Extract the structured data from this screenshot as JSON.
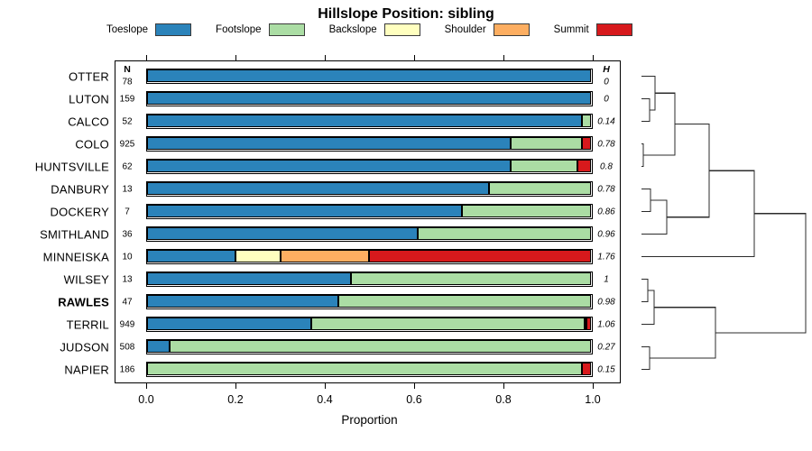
{
  "title": "Hillslope Position: sibling",
  "legend": {
    "items": [
      {
        "label": "Toeslope",
        "color": "#2b83ba"
      },
      {
        "label": "Footslope",
        "color": "#abdda4"
      },
      {
        "label": "Backslope",
        "color": "#ffffbf"
      },
      {
        "label": "Shoulder",
        "color": "#fdae61"
      },
      {
        "label": "Summit",
        "color": "#d7191c"
      }
    ]
  },
  "columns": {
    "n_header": "N",
    "h_header": "H"
  },
  "axis": {
    "label": "Proportion",
    "tick_labels": [
      "0.0",
      "0.2",
      "0.4",
      "0.6",
      "0.8",
      "1.0"
    ],
    "tick_values": [
      0,
      0.2,
      0.4,
      0.6,
      0.8,
      1.0
    ]
  },
  "chart_data": {
    "type": "bar",
    "orientation": "horizontal-stacked",
    "xlabel": "Proportion",
    "xlim": [
      0,
      1
    ],
    "stack_categories": [
      "Toeslope",
      "Footslope",
      "Backslope",
      "Shoulder",
      "Summit"
    ],
    "colors": {
      "Toeslope": "#2b83ba",
      "Footslope": "#abdda4",
      "Backslope": "#ffffbf",
      "Shoulder": "#fdae61",
      "Summit": "#d7191c"
    },
    "rows": [
      {
        "name": "OTTER",
        "n": "78",
        "h": "0",
        "bold": false,
        "segments": [
          {
            "pos": "Toeslope",
            "v": 1.0
          }
        ]
      },
      {
        "name": "LUTON",
        "n": "159",
        "h": "0",
        "bold": false,
        "segments": [
          {
            "pos": "Toeslope",
            "v": 1.0
          }
        ]
      },
      {
        "name": "CALCO",
        "n": "52",
        "h": "0.14",
        "bold": false,
        "segments": [
          {
            "pos": "Toeslope",
            "v": 0.98
          },
          {
            "pos": "Footslope",
            "v": 0.02
          }
        ]
      },
      {
        "name": "COLO",
        "n": "925",
        "h": "0.78",
        "bold": false,
        "segments": [
          {
            "pos": "Toeslope",
            "v": 0.82
          },
          {
            "pos": "Footslope",
            "v": 0.16
          },
          {
            "pos": "Summit",
            "v": 0.02
          }
        ]
      },
      {
        "name": "HUNTSVILLE",
        "n": "62",
        "h": "0.8",
        "bold": false,
        "segments": [
          {
            "pos": "Toeslope",
            "v": 0.82
          },
          {
            "pos": "Footslope",
            "v": 0.15
          },
          {
            "pos": "Summit",
            "v": 0.03
          }
        ]
      },
      {
        "name": "DANBURY",
        "n": "13",
        "h": "0.78",
        "bold": false,
        "segments": [
          {
            "pos": "Toeslope",
            "v": 0.77
          },
          {
            "pos": "Footslope",
            "v": 0.23
          }
        ]
      },
      {
        "name": "DOCKERY",
        "n": "7",
        "h": "0.86",
        "bold": false,
        "segments": [
          {
            "pos": "Toeslope",
            "v": 0.71
          },
          {
            "pos": "Footslope",
            "v": 0.29
          }
        ]
      },
      {
        "name": "SMITHLAND",
        "n": "36",
        "h": "0.96",
        "bold": false,
        "segments": [
          {
            "pos": "Toeslope",
            "v": 0.61
          },
          {
            "pos": "Footslope",
            "v": 0.39
          }
        ]
      },
      {
        "name": "MINNEISKA",
        "n": "10",
        "h": "1.76",
        "bold": false,
        "segments": [
          {
            "pos": "Toeslope",
            "v": 0.2
          },
          {
            "pos": "Backslope",
            "v": 0.1
          },
          {
            "pos": "Shoulder",
            "v": 0.2
          },
          {
            "pos": "Summit",
            "v": 0.5
          }
        ]
      },
      {
        "name": "WILSEY",
        "n": "13",
        "h": "1",
        "bold": false,
        "segments": [
          {
            "pos": "Toeslope",
            "v": 0.46
          },
          {
            "pos": "Footslope",
            "v": 0.54
          }
        ]
      },
      {
        "name": "RAWLES",
        "n": "47",
        "h": "0.98",
        "bold": true,
        "segments": [
          {
            "pos": "Toeslope",
            "v": 0.43
          },
          {
            "pos": "Footslope",
            "v": 0.57
          }
        ]
      },
      {
        "name": "TERRIL",
        "n": "949",
        "h": "1.06",
        "bold": false,
        "segments": [
          {
            "pos": "Toeslope",
            "v": 0.37
          },
          {
            "pos": "Footslope",
            "v": 0.615
          },
          {
            "pos": "Backslope",
            "v": 0.005
          },
          {
            "pos": "Summit",
            "v": 0.01
          }
        ]
      },
      {
        "name": "JUDSON",
        "n": "508",
        "h": "0.27",
        "bold": false,
        "segments": [
          {
            "pos": "Toeslope",
            "v": 0.05
          },
          {
            "pos": "Footslope",
            "v": 0.95
          }
        ]
      },
      {
        "name": "NAPIER",
        "n": "186",
        "h": "0.15",
        "bold": false,
        "segments": [
          {
            "pos": "Footslope",
            "v": 0.98
          },
          {
            "pos": "Summit",
            "v": 0.02
          }
        ]
      }
    ],
    "dendrogram": {
      "leaf_order": [
        "OTTER",
        "LUTON",
        "CALCO",
        "COLO",
        "HUNTSVILLE",
        "DANBURY",
        "DOCKERY",
        "SMITHLAND",
        "MINNEISKA",
        "WILSEY",
        "RAWLES",
        "TERRIL",
        "JUDSON",
        "NAPIER"
      ],
      "merges": [
        {
          "id": "A",
          "a": "COLO",
          "b": "HUNTSVILLE",
          "h": 0.011
        },
        {
          "id": "B",
          "a": "WILSEY",
          "b": "RAWLES",
          "h": 0.038
        },
        {
          "id": "C",
          "a": "LUTON",
          "b": "CALCO",
          "h": 0.049
        },
        {
          "id": "D",
          "a": "JUDSON",
          "b": "NAPIER",
          "h": 0.049
        },
        {
          "id": "E",
          "a": "DANBURY",
          "b": "DOCKERY",
          "h": 0.055
        },
        {
          "id": "F",
          "a": "B",
          "b": "TERRIL",
          "h": 0.077
        },
        {
          "id": "G",
          "a": "OTTER",
          "b": "C",
          "h": 0.082
        },
        {
          "id": "H2",
          "a": "E",
          "b": "SMITHLAND",
          "h": 0.154
        },
        {
          "id": "I",
          "a": "G",
          "b": "A",
          "h": 0.203
        },
        {
          "id": "J",
          "a": "I",
          "b": "H2",
          "h": 0.412
        },
        {
          "id": "K",
          "a": "F",
          "b": "D",
          "h": 0.451
        },
        {
          "id": "L",
          "a": "J",
          "b": "MINNEISKA",
          "h": 0.687
        },
        {
          "id": "ROOT",
          "a": "L",
          "b": "K",
          "h": 1.0
        }
      ]
    }
  }
}
